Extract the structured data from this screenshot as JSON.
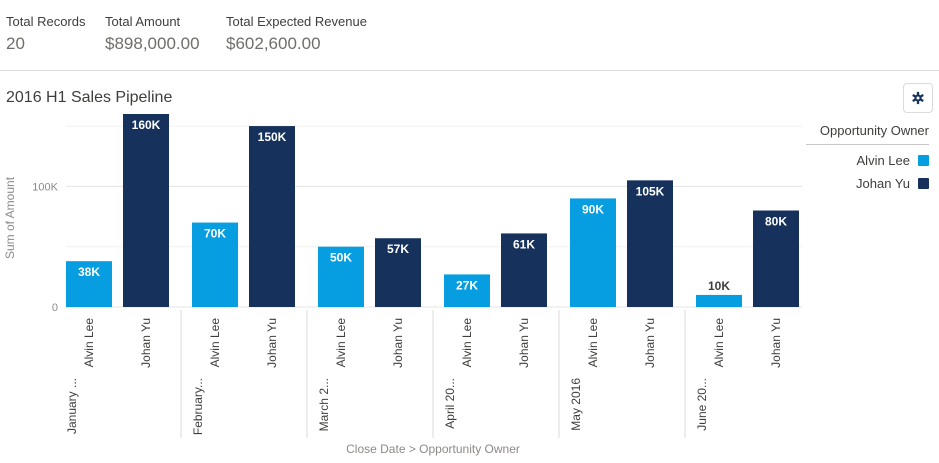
{
  "summary": {
    "stats": [
      {
        "label": "Total Records",
        "value": "20"
      },
      {
        "label": "Total Amount",
        "value": "$898,000.00"
      },
      {
        "label": "Total Expected Revenue",
        "value": "$602,600.00"
      }
    ]
  },
  "settings_icon": "gear-icon",
  "colors": {
    "alvin": "#069ee0",
    "johan": "#16325c"
  },
  "chart_data": {
    "type": "bar",
    "title": "2016 H1 Sales Pipeline",
    "xlabel": "Close Date > Opportunity Owner",
    "ylabel": "Sum of Amount",
    "ylim": [
      0,
      160000
    ],
    "yticks": [
      {
        "value": 0,
        "label": "0"
      },
      {
        "value": 100000,
        "label": "100K"
      }
    ],
    "grid": true,
    "legend": {
      "title": "Opportunity Owner",
      "placement": "right",
      "entries": [
        {
          "name": "Alvin Lee",
          "color": "#069ee0"
        },
        {
          "name": "Johan Yu",
          "color": "#16325c"
        }
      ]
    },
    "groups": [
      {
        "label": "January ...",
        "bars": [
          {
            "owner": "Alvin Lee",
            "value": 38000,
            "label": "38K",
            "color": "#069ee0"
          },
          {
            "owner": "Johan Yu",
            "value": 160000,
            "label": "160K",
            "color": "#16325c"
          }
        ]
      },
      {
        "label": "February...",
        "bars": [
          {
            "owner": "Alvin Lee",
            "value": 70000,
            "label": "70K",
            "color": "#069ee0"
          },
          {
            "owner": "Johan Yu",
            "value": 150000,
            "label": "150K",
            "color": "#16325c"
          }
        ]
      },
      {
        "label": "March 2...",
        "bars": [
          {
            "owner": "Alvin Lee",
            "value": 50000,
            "label": "50K",
            "color": "#069ee0"
          },
          {
            "owner": "Johan Yu",
            "value": 57000,
            "label": "57K",
            "color": "#16325c"
          }
        ]
      },
      {
        "label": "April 20...",
        "bars": [
          {
            "owner": "Alvin Lee",
            "value": 27000,
            "label": "27K",
            "color": "#069ee0"
          },
          {
            "owner": "Johan Yu",
            "value": 61000,
            "label": "61K",
            "color": "#16325c"
          }
        ]
      },
      {
        "label": "May 2016",
        "bars": [
          {
            "owner": "Alvin Lee",
            "value": 90000,
            "label": "90K",
            "color": "#069ee0"
          },
          {
            "owner": "Johan Yu",
            "value": 105000,
            "label": "105K",
            "color": "#16325c"
          }
        ]
      },
      {
        "label": "June 20...",
        "bars": [
          {
            "owner": "Alvin Lee",
            "value": 10000,
            "label": "10K",
            "color": "#069ee0"
          },
          {
            "owner": "Johan Yu",
            "value": 80000,
            "label": "80K",
            "color": "#16325c"
          }
        ]
      }
    ]
  }
}
